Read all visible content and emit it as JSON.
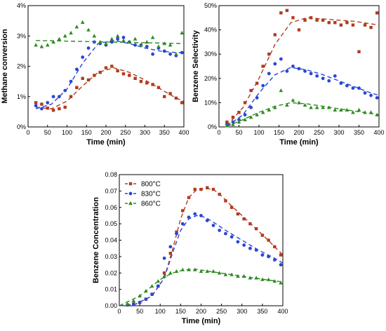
{
  "colors": {
    "s800": "#b33a1e",
    "s830": "#2a46d6",
    "s860": "#2e8a22"
  },
  "chart_data": [
    {
      "type": "scatter",
      "xlabel": "Time (min)",
      "ylabel": "Methane conversion",
      "xlim": [
        0,
        400
      ],
      "ylim": [
        0,
        4
      ],
      "xticks": [
        0,
        50,
        100,
        150,
        200,
        250,
        300,
        350,
        400
      ],
      "yticks": [
        0,
        1,
        2,
        3,
        4
      ],
      "ytick_labels": [
        "0%",
        "1%",
        "2%",
        "3%",
        "4%"
      ],
      "series": [
        {
          "key": "s800",
          "marker": "square",
          "x": [
            20,
            35,
            50,
            65,
            80,
            95,
            110,
            125,
            140,
            155,
            170,
            185,
            200,
            215,
            230,
            245,
            260,
            275,
            290,
            305,
            320,
            335,
            350,
            365,
            380,
            395
          ],
          "y": [
            0.8,
            0.75,
            0.62,
            0.55,
            0.6,
            0.65,
            1.0,
            1.3,
            1.6,
            1.55,
            1.7,
            1.8,
            1.95,
            2.0,
            1.85,
            1.75,
            1.7,
            1.6,
            1.5,
            1.45,
            1.4,
            1.3,
            1.0,
            1.1,
            0.95,
            0.8
          ],
          "fit_x": [
            20,
            60,
            100,
            140,
            180,
            220,
            260,
            300,
            340,
            380,
            400
          ],
          "fit_y": [
            0.65,
            0.6,
            0.85,
            1.35,
            1.8,
            1.95,
            1.8,
            1.55,
            1.25,
            0.95,
            0.85
          ]
        },
        {
          "key": "s830",
          "marker": "circle",
          "x": [
            20,
            35,
            50,
            65,
            80,
            95,
            110,
            125,
            140,
            155,
            170,
            185,
            200,
            215,
            230,
            245,
            260,
            275,
            290,
            305,
            320,
            335,
            350,
            365,
            380,
            395
          ],
          "y": [
            0.7,
            0.6,
            0.8,
            1.0,
            1.0,
            1.2,
            1.5,
            1.9,
            2.3,
            2.6,
            2.8,
            2.75,
            2.7,
            2.8,
            2.9,
            2.95,
            2.8,
            2.7,
            2.7,
            2.65,
            2.4,
            2.6,
            2.5,
            2.4,
            2.35,
            2.45
          ],
          "fit_x": [
            20,
            60,
            100,
            140,
            180,
            220,
            260,
            300,
            340,
            380,
            400
          ],
          "fit_y": [
            0.6,
            0.75,
            1.25,
            2.1,
            2.75,
            2.85,
            2.75,
            2.6,
            2.5,
            2.45,
            2.45
          ]
        },
        {
          "key": "s860",
          "marker": "triangle",
          "x": [
            20,
            35,
            50,
            65,
            80,
            95,
            110,
            125,
            140,
            155,
            170,
            185,
            200,
            215,
            230,
            245,
            260,
            275,
            290,
            305,
            320,
            335,
            350,
            365,
            380,
            395
          ],
          "y": [
            2.7,
            2.65,
            2.7,
            2.8,
            2.9,
            3.0,
            3.1,
            3.3,
            3.45,
            3.2,
            3.0,
            2.8,
            2.75,
            2.9,
            3.0,
            2.85,
            2.8,
            2.9,
            2.7,
            2.8,
            2.95,
            2.65,
            2.75,
            2.7,
            2.4,
            3.1
          ],
          "fit_x": [
            20,
            400
          ],
          "fit_y": [
            2.85,
            2.75
          ]
        }
      ]
    },
    {
      "type": "scatter",
      "xlabel": "Time (min)",
      "ylabel": "Benzene Selectivity",
      "xlim": [
        0,
        400
      ],
      "ylim": [
        0,
        50
      ],
      "xticks": [
        0,
        50,
        100,
        150,
        200,
        250,
        300,
        350,
        400
      ],
      "yticks": [
        0,
        10,
        20,
        30,
        40,
        50
      ],
      "ytick_labels": [
        "0%",
        "10%",
        "20%",
        "30%",
        "40%",
        "50%"
      ],
      "series": [
        {
          "key": "s800",
          "marker": "square",
          "x": [
            20,
            35,
            50,
            65,
            80,
            95,
            110,
            125,
            140,
            155,
            170,
            185,
            200,
            215,
            230,
            245,
            260,
            275,
            290,
            305,
            320,
            335,
            350,
            365,
            380,
            395
          ],
          "y": [
            2,
            4,
            6,
            10,
            15,
            18,
            25,
            30,
            38,
            47,
            48,
            45,
            40,
            44,
            45,
            44,
            44,
            43,
            43,
            42,
            43,
            42,
            31,
            42,
            41,
            47
          ],
          "fit_x": [
            20,
            60,
            100,
            140,
            180,
            220,
            260,
            300,
            340,
            380,
            400
          ],
          "fit_y": [
            0.5,
            8,
            20,
            34,
            43,
            45,
            44.5,
            44,
            43.5,
            42.5,
            42
          ]
        },
        {
          "key": "s830",
          "marker": "circle",
          "x": [
            20,
            35,
            50,
            65,
            80,
            95,
            110,
            125,
            140,
            155,
            170,
            185,
            200,
            215,
            230,
            245,
            260,
            275,
            290,
            305,
            320,
            335,
            350,
            365,
            380,
            395
          ],
          "y": [
            1,
            2,
            3,
            5,
            8,
            12,
            17,
            22,
            26,
            28,
            23,
            25,
            24,
            23,
            22,
            21,
            20,
            19,
            21,
            18,
            17,
            16,
            16,
            14,
            13,
            12
          ],
          "fit_x": [
            20,
            60,
            100,
            140,
            180,
            220,
            260,
            300,
            340,
            380,
            400
          ],
          "fit_y": [
            0.3,
            5,
            14,
            21.5,
            24.5,
            23.5,
            21.5,
            19,
            16.5,
            14,
            13
          ]
        },
        {
          "key": "s860",
          "marker": "triangle",
          "x": [
            20,
            35,
            50,
            65,
            80,
            95,
            110,
            125,
            140,
            155,
            170,
            185,
            200,
            215,
            230,
            245,
            260,
            275,
            290,
            305,
            320,
            335,
            350,
            365,
            380,
            395
          ],
          "y": [
            0.5,
            1,
            2,
            3,
            4,
            5,
            6,
            7,
            8,
            15,
            9,
            11,
            10,
            9,
            8,
            8,
            8,
            8,
            7,
            7,
            7,
            6,
            7,
            6,
            6,
            5
          ],
          "fit_x": [
            20,
            60,
            100,
            140,
            180,
            220,
            260,
            300,
            340,
            380,
            400
          ],
          "fit_y": [
            0.2,
            3,
            6,
            8.5,
            10,
            9.5,
            8.5,
            7.5,
            6.5,
            5.5,
            5
          ]
        }
      ]
    },
    {
      "type": "scatter",
      "xlabel": "Time (min)",
      "ylabel": "Benzene Concentration",
      "xlim": [
        0,
        400
      ],
      "ylim": [
        0,
        0.08
      ],
      "xticks": [
        0,
        50,
        100,
        150,
        200,
        250,
        300,
        350,
        400
      ],
      "yticks": [
        0,
        0.01,
        0.02,
        0.03,
        0.04,
        0.05,
        0.06,
        0.07,
        0.08
      ],
      "ytick_labels": [
        "0.00",
        "0.01",
        "0.02",
        "0.03",
        "0.04",
        "0.05",
        "0.06",
        "0.07",
        "0.08"
      ],
      "legend": {
        "placement": "top-left",
        "entries": [
          "800°C",
          "830°C",
          "860°C"
        ]
      },
      "series": [
        {
          "key": "s800",
          "marker": "square",
          "name": "800°C",
          "x": [
            20,
            35,
            50,
            65,
            80,
            95,
            110,
            125,
            140,
            155,
            170,
            185,
            200,
            215,
            230,
            245,
            260,
            275,
            290,
            305,
            320,
            335,
            350,
            365,
            380,
            395
          ],
          "y": [
            0.0005,
            0.001,
            0.002,
            0.004,
            0.007,
            0.012,
            0.02,
            0.032,
            0.045,
            0.058,
            0.066,
            0.071,
            0.071,
            0.072,
            0.071,
            0.068,
            0.064,
            0.06,
            0.056,
            0.053,
            0.05,
            0.047,
            0.043,
            0.04,
            0.036,
            0.031
          ],
          "fit_x": [
            0,
            40,
            80,
            110,
            130,
            150,
            170,
            190,
            210,
            230,
            250,
            270,
            300,
            330,
            360,
            400
          ],
          "fit_y": [
            0.0,
            0.001,
            0.006,
            0.017,
            0.034,
            0.053,
            0.066,
            0.071,
            0.0715,
            0.071,
            0.067,
            0.062,
            0.055,
            0.048,
            0.041,
            0.031
          ]
        },
        {
          "key": "s830",
          "marker": "circle",
          "name": "830°C",
          "x": [
            20,
            35,
            50,
            65,
            80,
            95,
            110,
            125,
            140,
            155,
            170,
            185,
            200,
            215,
            230,
            245,
            260,
            275,
            290,
            305,
            320,
            335,
            350,
            365,
            380,
            395
          ],
          "y": [
            0.0005,
            0.001,
            0.002,
            0.004,
            0.007,
            0.012,
            0.029,
            0.036,
            0.044,
            0.05,
            0.054,
            0.056,
            0.055,
            0.052,
            0.049,
            0.046,
            0.044,
            0.042,
            0.039,
            0.037,
            0.035,
            0.034,
            0.031,
            0.03,
            0.028,
            0.025
          ],
          "fit_x": [
            0,
            40,
            80,
            110,
            130,
            150,
            170,
            190,
            210,
            230,
            260,
            300,
            340,
            380,
            400
          ],
          "fit_y": [
            0.0,
            0.001,
            0.006,
            0.017,
            0.032,
            0.046,
            0.053,
            0.055,
            0.054,
            0.051,
            0.046,
            0.04,
            0.034,
            0.029,
            0.026
          ]
        },
        {
          "key": "s860",
          "marker": "triangle",
          "name": "860°C",
          "x": [
            20,
            35,
            50,
            65,
            80,
            95,
            110,
            125,
            140,
            155,
            170,
            185,
            200,
            215,
            230,
            245,
            260,
            275,
            290,
            305,
            320,
            335,
            350,
            365,
            380,
            395
          ],
          "y": [
            0.001,
            0.003,
            0.006,
            0.009,
            0.012,
            0.015,
            0.018,
            0.02,
            0.021,
            0.022,
            0.022,
            0.022,
            0.021,
            0.021,
            0.021,
            0.02,
            0.019,
            0.019,
            0.018,
            0.018,
            0.017,
            0.017,
            0.016,
            0.016,
            0.015,
            0.014
          ],
          "fit_x": [
            0,
            50,
            100,
            130,
            160,
            190,
            220,
            260,
            300,
            350,
            400
          ],
          "fit_y": [
            0.0,
            0.006,
            0.016,
            0.02,
            0.022,
            0.0222,
            0.021,
            0.0195,
            0.018,
            0.0162,
            0.0145
          ]
        }
      ]
    }
  ]
}
